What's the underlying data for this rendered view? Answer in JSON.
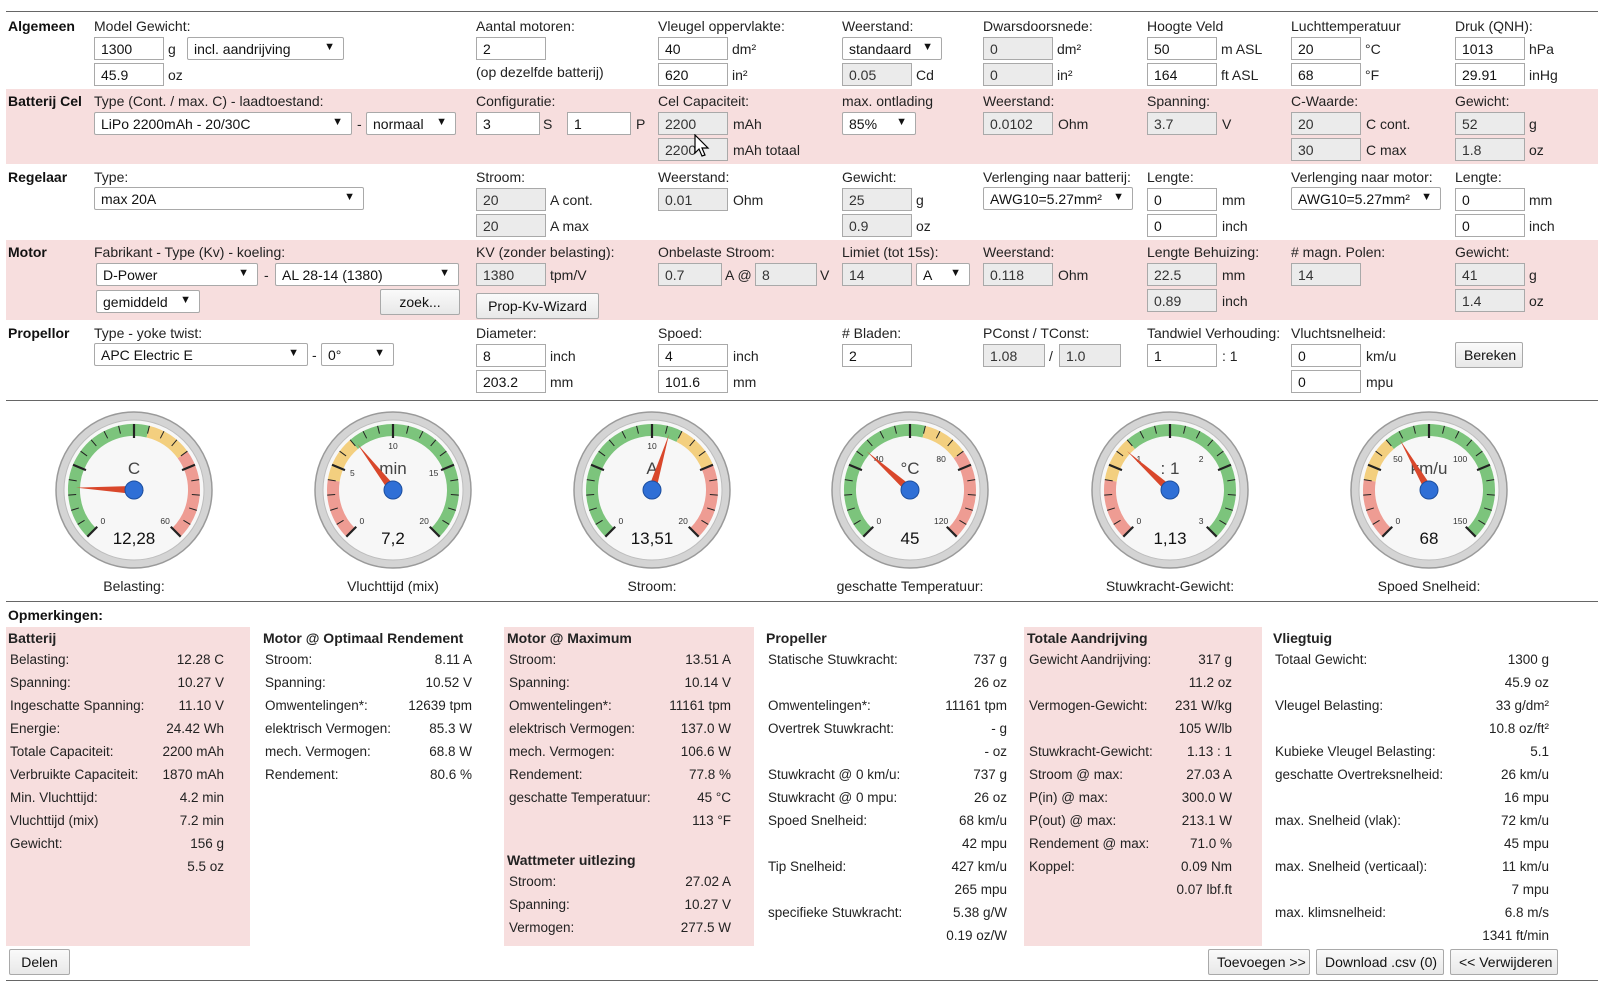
{
  "general": {
    "section": "Algemeen",
    "weight_label": "Model Gewicht:",
    "weight_g": "1300",
    "weight_unit_g": "g",
    "weight_mode": "incl. aandrijving",
    "weight_oz": "45.9",
    "weight_unit_oz": "oz",
    "motors_label": "Aantal motoren:",
    "motors": "2",
    "motors_note": "(op dezelfde batterij)",
    "wing_label": "Vleugel oppervlakte:",
    "wing_dm2": "40",
    "wing_unit_dm2": "dm²",
    "wing_in2": "620",
    "wing_unit_in2": "in²",
    "drag_label": "Weerstand:",
    "drag_mode": "standaard",
    "drag_cd": "0.05",
    "drag_unit": "Cd",
    "cross_label": "Dwarsdoorsnede:",
    "cross_dm2": "0",
    "cross_unit_dm2": "dm²",
    "cross_in2": "0",
    "cross_unit_in2": "in²",
    "alt_label": "Hoogte Veld",
    "alt_m": "50",
    "alt_unit_m": "m ASL",
    "alt_ft": "164",
    "alt_unit_ft": "ft ASL",
    "temp_label": "Luchttemperatuur",
    "temp_c": "20",
    "temp_unit_c": "°C",
    "temp_f": "68",
    "temp_unit_f": "°F",
    "press_label": "Druk (QNH):",
    "press_hpa": "1013",
    "press_unit_hpa": "hPa",
    "press_inhg": "29.91",
    "press_unit_inhg": "inHg"
  },
  "battery": {
    "section": "Batterij Cel",
    "type_label": "Type (Cont. / max. C) - laadtoestand:",
    "type": "LiPo 2200mAh - 20/30C",
    "dash": "-",
    "charge": "normaal",
    "config_label": "Configuratie:",
    "s": "3",
    "s_unit": "S",
    "p": "1",
    "p_unit": "P",
    "cap_label": "Cel Capaciteit:",
    "cap": "2200",
    "cap_unit": "mAh",
    "cap_total": "2200",
    "cap_total_unit": "mAh totaal",
    "disch_label": "max. ontlading",
    "disch": "85%",
    "res_label": "Weerstand:",
    "res": "0.0102",
    "res_unit": "Ohm",
    "volt_label": "Spanning:",
    "volt": "3.7",
    "volt_unit": "V",
    "c_label": "C-Waarde:",
    "c_cont": "20",
    "c_cont_unit": "C cont.",
    "c_max": "30",
    "c_max_unit": "C max",
    "w_label": "Gewicht:",
    "w_g": "52",
    "w_unit_g": "g",
    "w_oz": "1.8",
    "w_unit_oz": "oz"
  },
  "esc": {
    "section": "Regelaar",
    "type_label": "Type:",
    "type": "max 20A",
    "cur_label": "Stroom:",
    "cur_cont": "20",
    "cur_cont_unit": "A cont.",
    "cur_max": "20",
    "cur_max_unit": "A max",
    "res_label": "Weerstand:",
    "res": "0.01",
    "res_unit": "Ohm",
    "w_label": "Gewicht:",
    "w_g": "25",
    "w_unit_g": "g",
    "w_oz": "0.9",
    "w_unit_oz": "oz",
    "ext_bat_label": "Verlenging naar batterij:",
    "ext_bat": "AWG10=5.27mm²",
    "len1_label": "Lengte:",
    "len1_mm": "0",
    "len1_unit_mm": "mm",
    "len1_in": "0",
    "len1_unit_in": "inch",
    "ext_mot_label": "Verlenging naar motor:",
    "ext_mot": "AWG10=5.27mm²",
    "len2_label": "Lengte:",
    "len2_mm": "0",
    "len2_unit_mm": "mm",
    "len2_in": "0",
    "len2_unit_in": "inch"
  },
  "motor": {
    "section": "Motor",
    "type_label": "Fabrikant - Type (Kv) - koeling:",
    "maker": "D-Power",
    "dash": "-",
    "model": "AL 28-14 (1380)",
    "cooling": "gemiddeld",
    "search": "zoek...",
    "kv_label": "KV (zonder belasting):",
    "kv": "1380",
    "kv_unit": "tpm/V",
    "wizard": "Prop-Kv-Wizard",
    "io_label": "Onbelaste Stroom:",
    "io": "0.7",
    "io_at": "A @",
    "io_v": "8",
    "io_v_unit": "V",
    "lim_label": "Limiet (tot 15s):",
    "lim": "14",
    "lim_unit": "A",
    "res_label": "Weerstand:",
    "res": "0.118",
    "res_unit": "Ohm",
    "len_label": "Lengte Behuizing:",
    "len_mm": "22.5",
    "len_unit_mm": "mm",
    "len_in": "0.89",
    "len_unit_in": "inch",
    "poles_label": "# magn. Polen:",
    "poles": "14",
    "w_label": "Gewicht:",
    "w_g": "41",
    "w_unit_g": "g",
    "w_oz": "1.4",
    "w_unit_oz": "oz"
  },
  "prop": {
    "section": "Propellor",
    "type_label": "Type - yoke twist:",
    "type": "APC Electric E",
    "dash": "-",
    "twist": "0°",
    "dia_label": "Diameter:",
    "dia_in": "8",
    "dia_unit_in": "inch",
    "dia_mm": "203.2",
    "dia_unit_mm": "mm",
    "pitch_label": "Spoed:",
    "pitch_in": "4",
    "pitch_unit_in": "inch",
    "pitch_mm": "101.6",
    "pitch_unit_mm": "mm",
    "blades_label": "# Bladen:",
    "blades": "2",
    "pc_label": "PConst / TConst:",
    "pconst": "1.08",
    "slash": "/",
    "tconst": "1.0",
    "gear_label": "Tandwiel Verhouding:",
    "gear": "1",
    "gear_suffix": ": 1",
    "speed_label": "Vluchtsnelheid:",
    "speed_kmh": "0",
    "speed_unit_kmh": "km/u",
    "speed_mph": "0",
    "speed_unit_mph": "mpu",
    "calc": "Bereken"
  },
  "gauges": [
    {
      "unit": "C",
      "value": "12,28",
      "label": "Belasting:",
      "ticks": [
        "0",
        "60"
      ],
      "val": 12.28,
      "min": 0,
      "max": 70
    },
    {
      "unit": "min",
      "value": "7,2",
      "label": "Vluchttijd (mix)",
      "ticks": [
        "0",
        "5",
        "10",
        "15",
        "20"
      ],
      "val": 7.2,
      "min": 0,
      "max": 20
    },
    {
      "unit": "A",
      "value": "13,51",
      "label": "Stroom:",
      "ticks": [
        "0",
        "10",
        "20"
      ],
      "val": 13.51,
      "min": 0,
      "max": 24
    },
    {
      "unit": "°C",
      "value": "45",
      "label": "geschatte Temperatuur:",
      "ticks": [
        "0",
        "40",
        "80",
        "120"
      ],
      "val": 45,
      "min": 0,
      "max": 140
    },
    {
      "unit": ": 1",
      "value": "1,13",
      "label": "Stuwkracht-Gewicht:",
      "ticks": [
        "0",
        "1",
        "2",
        "3"
      ],
      "val": 1.13,
      "min": 0,
      "max": 3.5
    },
    {
      "unit": "km/u",
      "value": "68",
      "label": "Spoed Snelheid:",
      "ticks": [
        "0",
        "50",
        "100",
        "150"
      ],
      "val": 68,
      "min": 0,
      "max": 175
    }
  ],
  "remarks": {
    "title": "Opmerkingen:",
    "battery": {
      "title": "Batterij",
      "rows": [
        [
          "Belasting:",
          "12.28 C"
        ],
        [
          "Spanning:",
          "10.27 V"
        ],
        [
          "Ingeschatte Spanning:",
          "11.10 V"
        ],
        [
          "Energie:",
          "24.42 Wh"
        ],
        [
          "Totale Capaciteit:",
          "2200 mAh"
        ],
        [
          "Verbruikte Capaciteit:",
          "1870 mAh"
        ],
        [
          "Min. Vluchttijd:",
          "4.2 min"
        ],
        [
          "Vluchttijd (mix)",
          "7.2 min"
        ],
        [
          "Gewicht:",
          "156 g"
        ],
        [
          "",
          "5.5 oz"
        ]
      ]
    },
    "motor_opt": {
      "title": "Motor @ Optimaal Rendement",
      "rows": [
        [
          "Stroom:",
          "8.11 A"
        ],
        [
          "Spanning:",
          "10.52 V"
        ],
        [
          "Omwentelingen*:",
          "12639 tpm"
        ],
        [
          "elektrisch Vermogen:",
          "85.3 W"
        ],
        [
          "mech. Vermogen:",
          "68.8 W"
        ],
        [
          "Rendement:",
          "80.6 %"
        ]
      ]
    },
    "motor_max": {
      "title": "Motor @ Maximum",
      "rows": [
        [
          "Stroom:",
          "13.51 A"
        ],
        [
          "Spanning:",
          "10.14 V"
        ],
        [
          "Omwentelingen*:",
          "11161 tpm"
        ],
        [
          "elektrisch Vermogen:",
          "137.0 W"
        ],
        [
          "mech. Vermogen:",
          "106.6 W"
        ],
        [
          "Rendement:",
          "77.8 %"
        ],
        [
          "geschatte Temperatuur:",
          "45 °C"
        ],
        [
          "",
          "113 °F"
        ]
      ]
    },
    "wattmeter": {
      "title": "Wattmeter uitlezing",
      "rows": [
        [
          "Stroom:",
          "27.02 A"
        ],
        [
          "Spanning:",
          "10.27 V"
        ],
        [
          "Vermogen:",
          "277.5 W"
        ]
      ]
    },
    "propeller": {
      "title": "Propeller",
      "rows": [
        [
          "Statische Stuwkracht:",
          "737 g"
        ],
        [
          "",
          "26 oz"
        ],
        [
          "Omwentelingen*:",
          "11161 tpm"
        ],
        [
          "Overtrek Stuwkracht:",
          "- g"
        ],
        [
          "",
          "- oz"
        ],
        [
          "Stuwkracht @ 0 km/u:",
          "737 g"
        ],
        [
          "Stuwkracht @ 0 mpu:",
          "26 oz"
        ],
        [
          "Spoed Snelheid:",
          "68 km/u"
        ],
        [
          "",
          "42 mpu"
        ],
        [
          "Tip Snelheid:",
          "427 km/u"
        ],
        [
          "",
          "265 mpu"
        ],
        [
          "specifieke Stuwkracht:",
          "5.38 g/W"
        ],
        [
          "",
          "0.19 oz/W"
        ]
      ]
    },
    "drive": {
      "title": "Totale Aandrijving",
      "rows": [
        [
          "Gewicht Aandrijving:",
          "317 g"
        ],
        [
          "",
          "11.2 oz"
        ],
        [
          "Vermogen-Gewicht:",
          "231 W/kg"
        ],
        [
          "",
          "105 W/lb"
        ],
        [
          "Stuwkracht-Gewicht:",
          "1.13 : 1"
        ],
        [
          "Stroom @ max:",
          "27.03 A"
        ],
        [
          "P(in) @ max:",
          "300.0 W"
        ],
        [
          "P(out) @ max:",
          "213.1 W"
        ],
        [
          "Rendement @ max:",
          "71.0 %"
        ],
        [
          "Koppel:",
          "0.09 Nm"
        ],
        [
          "",
          "0.07 lbf.ft"
        ]
      ]
    },
    "plane": {
      "title": "Vliegtuig",
      "rows": [
        [
          "Totaal Gewicht:",
          "1300 g"
        ],
        [
          "",
          "45.9 oz"
        ],
        [
          "Vleugel Belasting:",
          "33 g/dm²"
        ],
        [
          "",
          "10.8 oz/ft²"
        ],
        [
          "Kubieke Vleugel Belasting:",
          "5.1"
        ],
        [
          "geschatte Overtreksnelheid:",
          "26 km/u"
        ],
        [
          "",
          "16 mpu"
        ],
        [
          "max. Snelheid (vlak):",
          "72 km/u"
        ],
        [
          "",
          "45 mpu"
        ],
        [
          "max. Snelheid (verticaal):",
          "11 km/u"
        ],
        [
          "",
          "7 mpu"
        ],
        [
          "max. klimsnelheid:",
          "6.8 m/s"
        ],
        [
          "",
          "1341 ft/min"
        ]
      ]
    }
  },
  "footer": {
    "share": "Delen",
    "add": "Toevoegen >>",
    "download": "Download .csv (0)",
    "remove": "<< Verwijderen"
  }
}
